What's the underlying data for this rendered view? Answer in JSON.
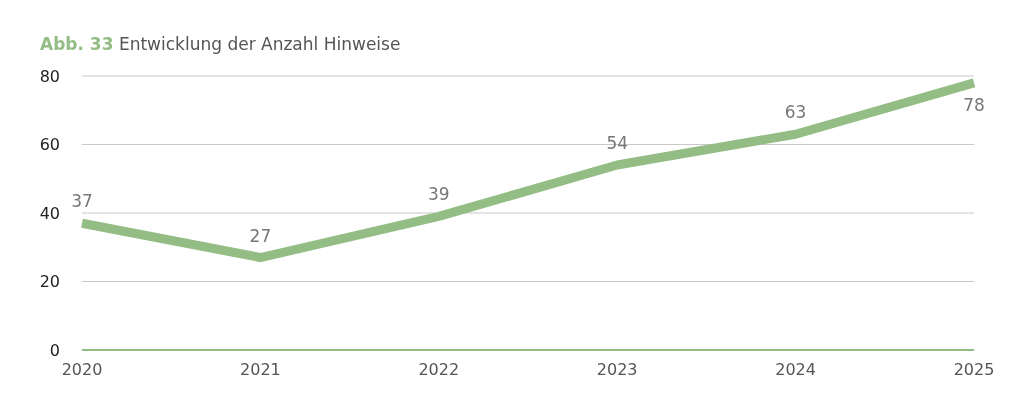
{
  "chart_data": {
    "type": "line",
    "title": "Abb. 33 Entwicklung der Anzahl Hinweise",
    "categories": [
      "2020",
      "2021",
      "2022",
      "2023",
      "2024",
      "2025"
    ],
    "series": [
      {
        "color": "#94bd85",
        "values": [
          37,
          27,
          39,
          54,
          63,
          78
        ]
      }
    ],
    "ylim": [
      0,
      80
    ],
    "yticks": [
      0,
      20,
      40,
      60,
      80
    ],
    "grid": "y",
    "marker": "none",
    "line_style": "solid",
    "data_labels": true
  }
}
